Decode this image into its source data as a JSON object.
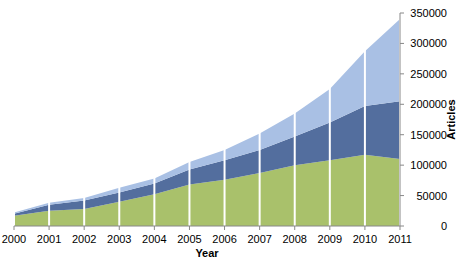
{
  "chart_data": {
    "type": "area",
    "stacked": true,
    "grid": true,
    "x_label": "Year",
    "y_label": "Articles",
    "x": [
      2000,
      2001,
      2002,
      2003,
      2004,
      2005,
      2006,
      2007,
      2008,
      2009,
      2010,
      2011
    ],
    "xlim": [
      2000,
      2011
    ],
    "xticks": [
      2000,
      2001,
      2002,
      2003,
      2004,
      2005,
      2006,
      2007,
      2008,
      2009,
      2010,
      2011
    ],
    "ylim": [
      0,
      350000
    ],
    "yticks": [
      0,
      50000,
      100000,
      150000,
      200000,
      250000,
      300000,
      350000
    ],
    "series": [
      {
        "color": "#a9c16b",
        "values": [
          17000,
          25000,
          28000,
          40000,
          52000,
          68000,
          76000,
          87000,
          100000,
          108000,
          117000,
          110000
        ]
      },
      {
        "color": "#536e9e",
        "values": [
          3000,
          10000,
          14000,
          15000,
          18000,
          25000,
          32000,
          38000,
          47000,
          62000,
          80000,
          95000
        ]
      },
      {
        "color": "#a9c0e4",
        "values": [
          2000,
          3000,
          4000,
          8000,
          8000,
          12000,
          17000,
          27000,
          38000,
          55000,
          90000,
          135000
        ]
      }
    ]
  }
}
